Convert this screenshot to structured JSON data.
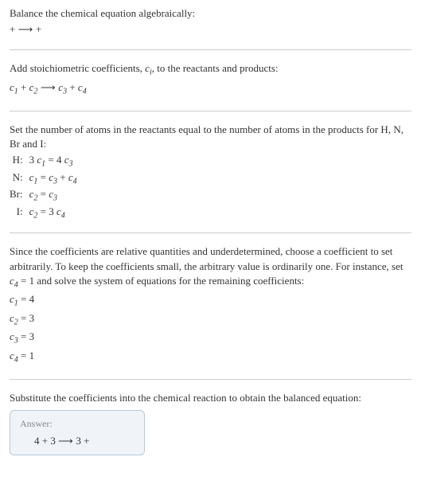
{
  "section1": {
    "title": "Balance the chemical equation algebraically:",
    "equation_pre": " + ",
    "equation_arrow": " ⟶ ",
    "equation_post": " + "
  },
  "section2": {
    "title_a": "Add stoichiometric coefficients, ",
    "title_ci": "c",
    "title_sub": "i",
    "title_b": ", to the reactants and products:",
    "c1": "c",
    "s1": "1",
    "plus1": " + ",
    "c2": "c",
    "s2": "2",
    "arrow": " ⟶ ",
    "c3": "c",
    "s3": "3",
    "plus2": " + ",
    "c4": "c",
    "s4": "4"
  },
  "section3": {
    "title": "Set the number of atoms in the reactants equal to the number of atoms in the products for H, N, Br and I:",
    "rows": {
      "h_label": "H:",
      "h_eq_a": "3 ",
      "h_c1": "c",
      "h_s1": "1",
      "h_mid": " = 4 ",
      "h_c3": "c",
      "h_s3": "3",
      "n_label": "N:",
      "n_c1": "c",
      "n_s1": "1",
      "n_mid": " = ",
      "n_c3": "c",
      "n_s3": "3",
      "n_plus": " + ",
      "n_c4": "c",
      "n_s4": "4",
      "br_label": "Br:",
      "br_c2": "c",
      "br_s2": "2",
      "br_mid": " = ",
      "br_c3": "c",
      "br_s3": "3",
      "i_label": "I:",
      "i_c2": "c",
      "i_s2": "2",
      "i_mid": " = 3 ",
      "i_c4": "c",
      "i_s4": "4"
    }
  },
  "section4": {
    "title_a": "Since the coefficients are relative quantities and underdetermined, choose a coefficient to set arbitrarily. To keep the coefficients small, the arbitrary value is ordinarily one. For instance, set ",
    "title_c": "c",
    "title_s": "4",
    "title_b": " = 1 and solve the system of equations for the remaining coefficients:",
    "r1c": "c",
    "r1s": "1",
    "r1v": " = 4",
    "r2c": "c",
    "r2s": "2",
    "r2v": " = 3",
    "r3c": "c",
    "r3s": "3",
    "r3v": " = 3",
    "r4c": "c",
    "r4s": "4",
    "r4v": " = 1"
  },
  "section5": {
    "title": "Substitute the coefficients into the chemical reaction to obtain the balanced equation:",
    "answer_label": "Answer:",
    "answer_a": "4 ",
    "answer_plus1": " + 3 ",
    "answer_arrow": " ⟶ ",
    "answer_b": " 3 ",
    "answer_plus2": " + "
  }
}
